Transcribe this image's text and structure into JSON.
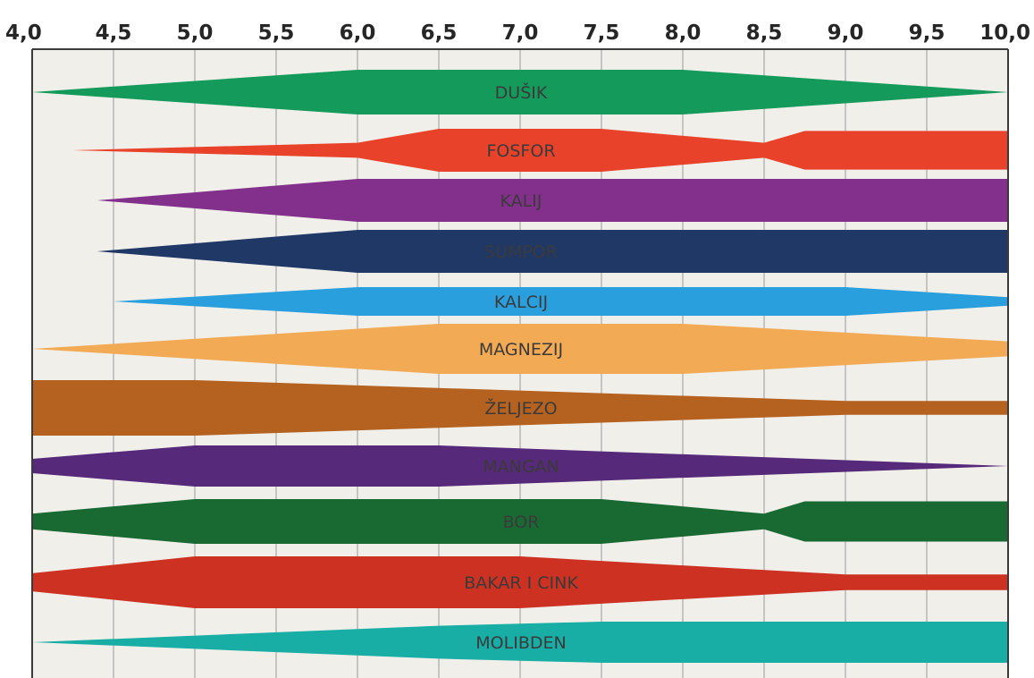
{
  "chart_data": {
    "type": "area",
    "title": "",
    "xlabel": "",
    "ylabel": "",
    "xlim": [
      4.0,
      10.0
    ],
    "x_ticks": [
      "4,0",
      "4,5",
      "5,0",
      "5,5",
      "6,0",
      "6,5",
      "7,0",
      "7,5",
      "8,0",
      "8,5",
      "9,0",
      "9,5",
      "10,0"
    ],
    "grid": true,
    "background": "#f1efea",
    "series": [
      {
        "name": "DUŠIK",
        "color": "#149a5a",
        "profile": [
          [
            4.0,
            0.0
          ],
          [
            6.0,
            1.0
          ],
          [
            8.0,
            1.0
          ],
          [
            10.0,
            0.0
          ]
        ]
      },
      {
        "name": "FOSFOR",
        "color": "#e8432a",
        "profile": [
          [
            4.25,
            0.0
          ],
          [
            6.0,
            0.35
          ],
          [
            6.5,
            1.0
          ],
          [
            7.5,
            1.0
          ],
          [
            8.5,
            0.35
          ],
          [
            8.75,
            0.9
          ],
          [
            10.0,
            0.9
          ]
        ]
      },
      {
        "name": "KALIJ",
        "color": "#82308c",
        "profile": [
          [
            4.4,
            0.0
          ],
          [
            6.0,
            1.0
          ],
          [
            10.0,
            1.0
          ]
        ]
      },
      {
        "name": "SUMPOR",
        "color": "#1f3866",
        "profile": [
          [
            4.4,
            0.0
          ],
          [
            6.0,
            1.0
          ],
          [
            10.0,
            1.0
          ]
        ]
      },
      {
        "name": "KALCIJ",
        "color": "#2a9fde",
        "profile": [
          [
            4.5,
            0.0
          ],
          [
            6.0,
            1.0
          ],
          [
            9.0,
            1.0
          ],
          [
            10.0,
            0.3
          ]
        ]
      },
      {
        "name": "MAGNEZIJ",
        "color": "#f3aa55",
        "profile": [
          [
            4.0,
            0.0
          ],
          [
            6.5,
            1.0
          ],
          [
            8.0,
            1.0
          ],
          [
            10.0,
            0.3
          ]
        ]
      },
      {
        "name": "ŽELJEZO",
        "color": "#b5611f",
        "profile": [
          [
            4.0,
            1.0
          ],
          [
            5.0,
            1.0
          ],
          [
            9.0,
            0.25
          ],
          [
            10.0,
            0.25
          ]
        ]
      },
      {
        "name": "MANGAN",
        "color": "#56297a",
        "profile": [
          [
            4.0,
            0.35
          ],
          [
            5.0,
            1.0
          ],
          [
            6.5,
            1.0
          ],
          [
            10.0,
            0.0
          ]
        ]
      },
      {
        "name": "BOR",
        "color": "#196a32",
        "profile": [
          [
            4.0,
            0.35
          ],
          [
            5.0,
            1.0
          ],
          [
            7.5,
            1.0
          ],
          [
            8.5,
            0.35
          ],
          [
            8.75,
            0.9
          ],
          [
            10.0,
            0.9
          ]
        ]
      },
      {
        "name": "BAKAR I CINK",
        "color": "#cd3122",
        "profile": [
          [
            4.0,
            0.35
          ],
          [
            5.0,
            1.0
          ],
          [
            7.0,
            1.0
          ],
          [
            9.0,
            0.3
          ],
          [
            10.0,
            0.3
          ]
        ]
      },
      {
        "name": "MOLIBDEN",
        "color": "#18ada5",
        "profile": [
          [
            4.0,
            0.0
          ],
          [
            6.5,
            0.8
          ],
          [
            7.5,
            1.0
          ],
          [
            10.0,
            1.0
          ]
        ]
      }
    ]
  }
}
